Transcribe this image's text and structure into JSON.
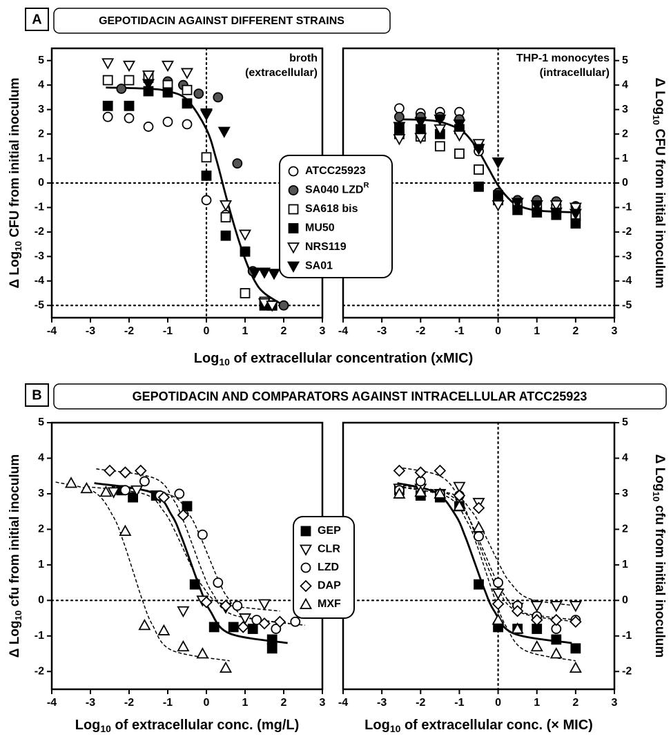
{
  "figures": [
    {
      "label": "A",
      "title": "GEPOTIDACIN AGAINST DIFFERENT STRAINS",
      "xlabel": [
        "Log",
        "10",
        " of extracellular concentration (xMIC)"
      ],
      "legend": [
        {
          "name": "ATCC25923",
          "marker": "circle",
          "fill": "#ffffff"
        },
        {
          "name": "SA040 LZD",
          "sup": "R",
          "marker": "circle",
          "fill": "#555555"
        },
        {
          "name": "SA618 bis",
          "marker": "square",
          "fill": "#ffffff"
        },
        {
          "name": "MU50",
          "marker": "square",
          "fill": "#000000"
        },
        {
          "name": "NRS119",
          "marker": "triangle-down",
          "fill": "#ffffff"
        },
        {
          "name": "SA01",
          "marker": "triangle-down",
          "fill": "#000000"
        }
      ]
    },
    {
      "label": "B",
      "title": "GEPOTIDACIN AND COMPARATORS AGAINST INTRACELLULAR ATCC25923",
      "legend": [
        {
          "name": "GEP",
          "marker": "square",
          "fill": "#000000"
        },
        {
          "name": "CLR",
          "marker": "triangle-down",
          "fill": "#ffffff"
        },
        {
          "name": "LZD",
          "marker": "circle",
          "fill": "#ffffff"
        },
        {
          "name": "DAP",
          "marker": "diamond",
          "fill": "#ffffff"
        },
        {
          "name": "MXF",
          "marker": "triangle-up",
          "fill": "#ffffff"
        }
      ]
    }
  ],
  "chart_data": [
    {
      "type": "scatter",
      "y_axis": "left",
      "ylabel": [
        "Δ Log",
        "10",
        " CFU from initial inoculum"
      ],
      "annotation": [
        "broth",
        "(extracellular)"
      ],
      "xlim": [
        -4,
        3
      ],
      "xticks": [
        -4,
        -3,
        -2,
        -1,
        0,
        1,
        2,
        3
      ],
      "ylim": [
        -5.5,
        5.5
      ],
      "yticks": [
        -5,
        -4,
        -3,
        -2,
        -1,
        0,
        1,
        2,
        3,
        4,
        5
      ],
      "hlines": [
        0,
        -5
      ],
      "vlines": [
        0
      ],
      "series": [
        {
          "x": [
            -2.55,
            -2,
            -1.5,
            -1,
            -0.5,
            0,
            0.5,
            1,
            1.5,
            1.7
          ],
          "y": [
            2.7,
            2.65,
            2.3,
            2.5,
            2.4,
            -0.7,
            -1.3,
            -2.8,
            -5,
            -5
          ]
        },
        {
          "x": [
            -2.2,
            -1.5,
            -1,
            -0.6,
            -0.2,
            0.3,
            0.8,
            1.2,
            2
          ],
          "y": [
            3.85,
            4.2,
            4.15,
            4.0,
            3.65,
            3.5,
            0.8,
            -3.6,
            -5
          ]
        },
        {
          "x": [
            -2.55,
            -2,
            -1.5,
            -1,
            -0.5,
            0,
            0.5,
            1,
            1.5,
            1.7
          ],
          "y": [
            4.2,
            4.2,
            4.3,
            4.0,
            3.8,
            1.05,
            -1.4,
            -4.5,
            -4.85,
            -5
          ]
        },
        {
          "x": [
            -2.55,
            -2,
            -1.5,
            -1,
            -0.5,
            0,
            0.5,
            1,
            1.5,
            1.7
          ],
          "y": [
            3.15,
            3.15,
            3.75,
            3.7,
            3.25,
            0.3,
            -2.15,
            -2.8,
            -5,
            -5
          ]
        },
        {
          "x": [
            -2.55,
            -2,
            -1.5,
            -1,
            -0.5,
            0,
            0.5,
            1,
            1.5,
            1.7
          ],
          "y": [
            4.9,
            4.8,
            4.4,
            4.8,
            4.5,
            2.8,
            -0.9,
            -2.1,
            -4.9,
            -5
          ]
        },
        {
          "x": [
            -1.5,
            0,
            0.46,
            1.25,
            1.5,
            1.75
          ],
          "y": [
            4.05,
            2.85,
            2.1,
            -3.65,
            -3.65,
            -3.7
          ]
        }
      ],
      "curves": [
        {
          "dash": false,
          "x": [
            -2.6,
            -1.5,
            -1,
            -0.5,
            0,
            0.25,
            0.5,
            0.75,
            1,
            1.25,
            1.5,
            2
          ],
          "y": [
            3.9,
            3.85,
            3.75,
            3.4,
            2.2,
            1.0,
            -0.5,
            -1.9,
            -3.1,
            -4.0,
            -4.5,
            -5.0
          ]
        }
      ]
    },
    {
      "type": "scatter",
      "y_axis": "right",
      "ylabel": [
        "Δ Log",
        "10",
        " CFU from initial inoculum"
      ],
      "annotation": [
        "THP-1 monocytes",
        "(intracellular)"
      ],
      "xlim": [
        -4,
        3
      ],
      "xticks": [
        -4,
        -3,
        -2,
        -1,
        0,
        1,
        2,
        3
      ],
      "ylim": [
        -5.5,
        5.5
      ],
      "yticks": [
        -5,
        -4,
        -3,
        -2,
        -1,
        0,
        1,
        2,
        3,
        4,
        5
      ],
      "hlines": [
        0,
        -5
      ],
      "vlines": [
        0
      ],
      "series": [
        {
          "x": [
            -2.55,
            -2,
            -1.5,
            -1,
            -0.5,
            0,
            0.5,
            1,
            1.5,
            2
          ],
          "y": [
            3.05,
            2.85,
            2.9,
            2.9,
            1.3,
            -0.5,
            -0.8,
            -0.8,
            -0.9,
            -0.95
          ]
        },
        {
          "x": [
            -2.55,
            -2,
            -1.5,
            -1,
            -0.5,
            0,
            0.5,
            1,
            1.5,
            2
          ],
          "y": [
            2.7,
            2.7,
            2.7,
            2.6,
            1.5,
            -0.4,
            -0.7,
            -0.7,
            -0.75,
            -0.95
          ]
        },
        {
          "x": [
            -2.55,
            -2,
            -1.5,
            -1,
            -0.5,
            0,
            0.5,
            1,
            1.5,
            2
          ],
          "y": [
            2.0,
            1.9,
            1.5,
            1.2,
            0.55,
            -0.7,
            -0.85,
            -1.0,
            -1.05,
            -1.35
          ]
        },
        {
          "x": [
            -2.55,
            -2,
            -1.5,
            -1,
            -0.5,
            0,
            0.5,
            1,
            1.5,
            2
          ],
          "y": [
            2.2,
            2.2,
            2.0,
            2.2,
            -0.15,
            -0.5,
            -1.1,
            -1.2,
            -1.3,
            -1.65
          ]
        },
        {
          "x": [
            -2.55,
            -2,
            -1.5,
            -1,
            -0.5,
            0,
            0.5,
            1,
            1.5,
            2
          ],
          "y": [
            1.8,
            1.85,
            2.2,
            1.95,
            1.6,
            -0.9,
            -0.8,
            -0.9,
            -0.9,
            -1.0
          ]
        },
        {
          "x": [
            -2.55,
            -2,
            -1.5,
            -1,
            -0.5,
            0,
            0.5,
            1,
            1.5,
            2
          ],
          "y": [
            2.3,
            2.5,
            2.6,
            2.4,
            1.4,
            0.85,
            -0.8,
            -0.9,
            -1.2,
            -1.25
          ]
        }
      ],
      "curves": [
        {
          "dash": false,
          "x": [
            -2.6,
            -2,
            -1.5,
            -1,
            -0.75,
            -0.5,
            -0.25,
            0,
            0.25,
            0.5,
            1,
            2
          ],
          "y": [
            2.6,
            2.58,
            2.5,
            2.2,
            1.85,
            1.3,
            0.6,
            -0.1,
            -0.6,
            -0.9,
            -1.12,
            -1.2
          ]
        }
      ]
    },
    {
      "type": "scatter",
      "y_axis": "left",
      "ylabel": [
        "Δ Log",
        "10",
        " cfu from initial inoculum"
      ],
      "xlabel": [
        "Log",
        "10",
        " of extracellular conc. (mg/L)"
      ],
      "xlim": [
        -4,
        3
      ],
      "xticks": [
        -4,
        -3,
        -2,
        -1,
        0,
        1,
        2,
        3
      ],
      "ylim": [
        -2.5,
        5
      ],
      "yticks": [
        -2,
        -1,
        0,
        1,
        2,
        3,
        4,
        5
      ],
      "hlines": [
        0
      ],
      "vlines": [],
      "series": [
        {
          "x": [
            -2.2,
            -1.9,
            -1.3,
            -0.5,
            -0.3,
            0.2,
            0.7,
            1.2,
            1.7,
            1.7
          ],
          "y": [
            3.1,
            2.9,
            2.95,
            2.65,
            0.45,
            -0.75,
            -0.75,
            -0.8,
            -1.35,
            -1.1
          ]
        },
        {
          "x": [
            -2.4,
            -1.8,
            -1.2,
            -0.6,
            -0.1,
            0.5,
            1.0,
            1.5
          ],
          "y": [
            3.05,
            3.1,
            2.9,
            -0.3,
            0.0,
            -0.2,
            -0.5,
            -0.1
          ]
        },
        {
          "x": [
            -2.1,
            -1.6,
            -1.2,
            -0.7,
            -0.1,
            0.3,
            0.8,
            1.3,
            1.8,
            2.3
          ],
          "y": [
            3.1,
            3.35,
            2.95,
            3.0,
            1.85,
            0.5,
            -0.15,
            -0.55,
            -0.8,
            -0.6
          ]
        },
        {
          "x": [
            -2.5,
            -2.1,
            -1.7,
            -1.1,
            -0.6,
            0.0,
            0.5,
            0.95,
            1.5,
            1.9
          ],
          "y": [
            3.65,
            3.6,
            3.65,
            2.9,
            2.4,
            -0.05,
            -0.15,
            -0.75,
            -0.65,
            -0.6
          ]
        },
        {
          "x": [
            -3.5,
            -3.1,
            -2.6,
            -2.1,
            -1.6,
            -1.1,
            -0.6,
            -0.1,
            0.5
          ],
          "y": [
            3.3,
            3.15,
            3.05,
            1.95,
            -0.7,
            -0.85,
            -1.3,
            -1.5,
            -1.9
          ]
        }
      ],
      "curves": [
        {
          "dash": false,
          "x": [
            -2.9,
            -1.4,
            -0.9,
            -0.65,
            -0.4,
            -0.15,
            0.1,
            0.6,
            2.1
          ],
          "y": [
            3.3,
            3.03,
            2.4,
            1.8,
            1.05,
            0.3,
            -0.3,
            -0.93,
            -1.2
          ]
        },
        {
          "dash": true,
          "x": [
            -3.1,
            -1.6,
            -1.1,
            -0.85,
            -0.6,
            -0.35,
            -0.1,
            0.4,
            1.9
          ],
          "y": [
            3.2,
            2.99,
            2.5,
            2.03,
            1.45,
            0.87,
            0.4,
            -0.09,
            -0.3
          ]
        },
        {
          "dash": true,
          "x": [
            -2.45,
            -0.95,
            -0.45,
            -0.2,
            0.05,
            0.3,
            0.55,
            1.05,
            2.55
          ],
          "y": [
            3.2,
            2.97,
            2.42,
            1.9,
            1.25,
            0.6,
            0.08,
            -0.47,
            -0.7
          ]
        },
        {
          "dash": true,
          "x": [
            -2.85,
            -1.35,
            -0.85,
            -0.6,
            -0.35,
            -0.1,
            0.15,
            0.65,
            2.15
          ],
          "y": [
            3.7,
            3.44,
            2.83,
            2.25,
            1.53,
            0.8,
            0.22,
            -0.39,
            -0.65
          ]
        },
        {
          "dash": true,
          "x": [
            -3.9,
            -2.9,
            -2.4,
            -2.15,
            -1.9,
            -1.65,
            -1.4,
            -0.9,
            0.6
          ],
          "y": [
            3.33,
            3.05,
            2.34,
            1.66,
            0.83,
            -0.01,
            -0.68,
            -1.4,
            -1.7
          ]
        }
      ]
    },
    {
      "type": "scatter",
      "y_axis": "right",
      "ylabel": [
        "Δ Log",
        "10",
        " cfu from initial inoculum"
      ],
      "xlabel": [
        "Log",
        "10",
        " of extracellular conc. (× MIC)"
      ],
      "xlim": [
        -4,
        3
      ],
      "xticks": [
        -4,
        -3,
        -2,
        -1,
        0,
        1,
        2,
        3
      ],
      "ylim": [
        -2.5,
        5
      ],
      "yticks": [
        -2,
        -1,
        0,
        1,
        2,
        3,
        4,
        5
      ],
      "hlines": [
        0
      ],
      "vlines": [
        0
      ],
      "series": [
        {
          "x": [
            -2.55,
            -2,
            -1.5,
            -1,
            -0.5,
            0,
            0.5,
            1,
            1.5,
            2
          ],
          "y": [
            3.1,
            2.95,
            2.9,
            2.65,
            0.45,
            -0.75,
            -0.8,
            -0.8,
            -1.1,
            -1.35
          ]
        },
        {
          "x": [
            -2.55,
            -2,
            -1.5,
            -1,
            -0.5,
            0,
            0.5,
            1,
            1.5,
            2
          ],
          "y": [
            3.15,
            3.15,
            3.0,
            3.2,
            2.75,
            0.2,
            -0.2,
            -0.15,
            -0.15,
            -0.15
          ]
        },
        {
          "x": [
            -2.55,
            -2,
            -1.5,
            -1,
            -0.5,
            0,
            0.5,
            1,
            1.5,
            2
          ],
          "y": [
            3.1,
            3.35,
            3.0,
            2.95,
            1.8,
            0.5,
            -0.15,
            -0.45,
            -0.8,
            -0.55
          ]
        },
        {
          "x": [
            -2.55,
            -2,
            -1.5,
            -1,
            -0.5,
            0,
            0.5,
            1,
            1.5,
            2
          ],
          "y": [
            3.65,
            3.6,
            3.65,
            2.95,
            2.6,
            -0.1,
            -0.3,
            -0.55,
            -0.55,
            -0.6
          ]
        },
        {
          "x": [
            -2.55,
            -2,
            -1.5,
            -1,
            -0.5,
            0,
            0.5,
            1,
            1.5,
            2
          ],
          "y": [
            3.0,
            3.05,
            3.0,
            2.65,
            2.05,
            -0.55,
            -0.8,
            -1.3,
            -1.5,
            -1.9
          ]
        }
      ],
      "curves": [
        {
          "dash": false,
          "x": [
            -2.6,
            -1.6,
            -1.1,
            -0.85,
            -0.6,
            -0.35,
            -0.1,
            0.4,
            1.9
          ],
          "y": [
            3.3,
            3.03,
            2.4,
            1.8,
            1.05,
            0.3,
            -0.3,
            -0.93,
            -1.2
          ]
        },
        {
          "dash": true,
          "x": [
            -2.6,
            -1.2,
            -0.7,
            -0.45,
            -0.2,
            0.05,
            0.3,
            0.8,
            2
          ],
          "y": [
            3.2,
            3.0,
            2.53,
            2.08,
            1.53,
            0.97,
            0.52,
            0.05,
            -0.15
          ]
        },
        {
          "dash": true,
          "x": [
            -2.6,
            -1.35,
            -0.85,
            -0.6,
            -0.35,
            -0.1,
            0.15,
            0.65,
            2
          ],
          "y": [
            3.25,
            3.02,
            2.48,
            1.96,
            1.33,
            0.69,
            0.17,
            -0.37,
            -0.6
          ]
        },
        {
          "dash": true,
          "x": [
            -2.6,
            -1.5,
            -1,
            -0.75,
            -0.5,
            -0.25,
            0,
            0.5,
            2
          ],
          "y": [
            3.75,
            3.5,
            2.89,
            2.31,
            1.6,
            0.89,
            0.31,
            -0.3,
            -0.55
          ]
        },
        {
          "dash": true,
          "x": [
            -2.6,
            -1.3,
            -0.8,
            -0.55,
            -0.3,
            -0.05,
            0.2,
            0.7,
            2
          ],
          "y": [
            3.2,
            2.91,
            2.22,
            1.56,
            0.75,
            -0.06,
            -0.72,
            -1.41,
            -1.7
          ]
        }
      ]
    }
  ]
}
